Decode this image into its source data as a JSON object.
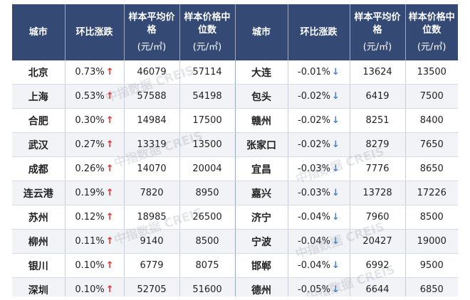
{
  "header": {
    "city": "城市",
    "change": "环比涨跌",
    "avg_price": "样本平均价格",
    "median_price": "样本价格中位数",
    "unit": "(元/㎡)"
  },
  "left_rows": [
    {
      "city": "北京",
      "change": "0.73%",
      "dir": "up",
      "avg": "46079",
      "median": "57114"
    },
    {
      "city": "上海",
      "change": "0.53%",
      "dir": "up",
      "avg": "57588",
      "median": "54198"
    },
    {
      "city": "合肥",
      "change": "0.30%",
      "dir": "up",
      "avg": "14984",
      "median": "17500"
    },
    {
      "city": "武汉",
      "change": "0.27%",
      "dir": "up",
      "avg": "13319",
      "median": "13500"
    },
    {
      "city": "成都",
      "change": "0.26%",
      "dir": "up",
      "avg": "14070",
      "median": "20004"
    },
    {
      "city": "连云港",
      "change": "0.19%",
      "dir": "up",
      "avg": "7820",
      "median": "8950"
    },
    {
      "city": "苏州",
      "change": "0.12%",
      "dir": "up",
      "avg": "18985",
      "median": "26500"
    },
    {
      "city": "柳州",
      "change": "0.11%",
      "dir": "up",
      "avg": "9140",
      "median": "8500"
    },
    {
      "city": "银川",
      "change": "0.10%",
      "dir": "up",
      "avg": "6779",
      "median": "8075"
    },
    {
      "city": "深圳",
      "change": "0.10%",
      "dir": "up",
      "avg": "52705",
      "median": "51600"
    }
  ],
  "right_rows": [
    {
      "city": "大连",
      "change": "-0.01%",
      "dir": "down",
      "avg": "13624",
      "median": "13500"
    },
    {
      "city": "包头",
      "change": "-0.02%",
      "dir": "down",
      "avg": "6419",
      "median": "7500"
    },
    {
      "city": "赣州",
      "change": "-0.02%",
      "dir": "down",
      "avg": "8251",
      "median": "8400"
    },
    {
      "city": "张家口",
      "change": "-0.02%",
      "dir": "down",
      "avg": "8279",
      "median": "7650"
    },
    {
      "city": "宜昌",
      "change": "-0.03%",
      "dir": "down",
      "avg": "7776",
      "median": "8650"
    },
    {
      "city": "嘉兴",
      "change": "-0.03%",
      "dir": "down",
      "avg": "13728",
      "median": "17226"
    },
    {
      "city": "济宁",
      "change": "-0.04%",
      "dir": "down",
      "avg": "7960",
      "median": "8500"
    },
    {
      "city": "宁波",
      "change": "-0.04%",
      "dir": "down",
      "avg": "20427",
      "median": "19000"
    },
    {
      "city": "邯郸",
      "change": "-0.04%",
      "dir": "down",
      "avg": "6992",
      "median": "9500"
    },
    {
      "city": "德州",
      "change": "-0.05%",
      "dir": "down",
      "avg": "6644",
      "median": "6850"
    }
  ],
  "arrows": {
    "up": "↑",
    "down": "↓"
  },
  "watermark": "中指数据 CREIS",
  "colors": {
    "header_bg": "#344a74",
    "up": "#e0302f",
    "down": "#3b86d4"
  }
}
